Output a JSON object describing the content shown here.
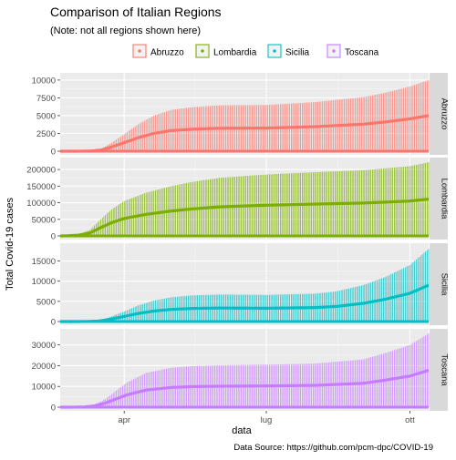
{
  "chart_data": {
    "type": "bar",
    "title": "Comparison of Italian Regions",
    "subtitle": "(Note: not all regions shown here)",
    "xlabel": "data",
    "ylabel": "Total Covid-19 cases",
    "caption": "Data Source: https://github.com/pcm-dpc/COVID-19",
    "legend": {
      "position": "top",
      "entries": [
        "Abruzzo",
        "Lombardia",
        "Sicilia",
        "Toscana"
      ]
    },
    "x_ticks": [
      {
        "label": "apr",
        "date": "2020-04-01"
      },
      {
        "label": "lug",
        "date": "2020-07-01"
      },
      {
        "label": "ott",
        "date": "2020-10-01"
      }
    ],
    "x_range": [
      "2020-02-20",
      "2020-10-13"
    ],
    "series": [
      {
        "name": "Abruzzo",
        "color": "#F8766D",
        "ylim": [
          0,
          10500
        ],
        "y_ticks": [
          {
            "value": 0,
            "label": "0"
          },
          {
            "value": 2500,
            "label": "2500"
          },
          {
            "value": 5000,
            "label": "5000"
          },
          {
            "value": 7500,
            "label": "7500"
          },
          {
            "value": 10000,
            "label": "10000"
          }
        ],
        "profile": [
          {
            "date": "2020-02-20",
            "value": 0
          },
          {
            "date": "2020-02-29",
            "value": 0
          },
          {
            "date": "2020-03-10",
            "value": 40
          },
          {
            "date": "2020-03-17",
            "value": 300
          },
          {
            "date": "2020-03-24",
            "value": 1200
          },
          {
            "date": "2020-04-01",
            "value": 2400
          },
          {
            "date": "2020-04-10",
            "value": 3800
          },
          {
            "date": "2020-04-20",
            "value": 5000
          },
          {
            "date": "2020-05-01",
            "value": 5800
          },
          {
            "date": "2020-05-15",
            "value": 6200
          },
          {
            "date": "2020-06-01",
            "value": 6450
          },
          {
            "date": "2020-07-01",
            "value": 6500
          },
          {
            "date": "2020-08-01",
            "value": 6900
          },
          {
            "date": "2020-09-01",
            "value": 7600
          },
          {
            "date": "2020-09-15",
            "value": 8200
          },
          {
            "date": "2020-10-01",
            "value": 9100
          },
          {
            "date": "2020-10-13",
            "value": 10000
          }
        ]
      },
      {
        "name": "Lombardia",
        "color": "#7CAE00",
        "ylim": [
          0,
          225000
        ],
        "y_ticks": [
          {
            "value": 0,
            "label": "0"
          },
          {
            "value": 50000,
            "label": "50000"
          },
          {
            "value": 100000,
            "label": "100000"
          },
          {
            "value": 150000,
            "label": "150000"
          },
          {
            "value": 200000,
            "label": "200000"
          }
        ],
        "profile": [
          {
            "date": "2020-02-20",
            "value": 0
          },
          {
            "date": "2020-02-24",
            "value": 500
          },
          {
            "date": "2020-03-03",
            "value": 5000
          },
          {
            "date": "2020-03-10",
            "value": 18000
          },
          {
            "date": "2020-03-17",
            "value": 50000
          },
          {
            "date": "2020-03-24",
            "value": 80000
          },
          {
            "date": "2020-04-01",
            "value": 105000
          },
          {
            "date": "2020-04-15",
            "value": 130000
          },
          {
            "date": "2020-05-01",
            "value": 150000
          },
          {
            "date": "2020-05-15",
            "value": 163000
          },
          {
            "date": "2020-06-01",
            "value": 175000
          },
          {
            "date": "2020-07-01",
            "value": 185000
          },
          {
            "date": "2020-08-01",
            "value": 192000
          },
          {
            "date": "2020-09-01",
            "value": 198000
          },
          {
            "date": "2020-10-01",
            "value": 210000
          },
          {
            "date": "2020-10-13",
            "value": 222000
          }
        ]
      },
      {
        "name": "Sicilia",
        "color": "#00BFC4",
        "ylim": [
          0,
          18500
        ],
        "y_ticks": [
          {
            "value": 0,
            "label": "0"
          },
          {
            "value": 5000,
            "label": "5000"
          },
          {
            "value": 10000,
            "label": "10000"
          },
          {
            "value": 15000,
            "label": "15000"
          }
        ],
        "profile": [
          {
            "date": "2020-02-20",
            "value": 0
          },
          {
            "date": "2020-02-28",
            "value": 0
          },
          {
            "date": "2020-03-08",
            "value": 30
          },
          {
            "date": "2020-03-15",
            "value": 200
          },
          {
            "date": "2020-03-22",
            "value": 1000
          },
          {
            "date": "2020-04-01",
            "value": 2500
          },
          {
            "date": "2020-04-10",
            "value": 4000
          },
          {
            "date": "2020-04-20",
            "value": 5200
          },
          {
            "date": "2020-05-01",
            "value": 6000
          },
          {
            "date": "2020-05-15",
            "value": 6500
          },
          {
            "date": "2020-06-01",
            "value": 6700
          },
          {
            "date": "2020-07-01",
            "value": 6600
          },
          {
            "date": "2020-08-01",
            "value": 6900
          },
          {
            "date": "2020-08-15",
            "value": 7500
          },
          {
            "date": "2020-09-01",
            "value": 9000
          },
          {
            "date": "2020-09-15",
            "value": 11000
          },
          {
            "date": "2020-10-01",
            "value": 14000
          },
          {
            "date": "2020-10-13",
            "value": 18000
          }
        ]
      },
      {
        "name": "Toscana",
        "color": "#C77CFF",
        "ylim": [
          0,
          36000
        ],
        "y_ticks": [
          {
            "value": 0,
            "label": "0"
          },
          {
            "value": 10000,
            "label": "10000"
          },
          {
            "value": 20000,
            "label": "20000"
          },
          {
            "value": 30000,
            "label": "30000"
          }
        ],
        "profile": [
          {
            "date": "2020-02-20",
            "value": 0
          },
          {
            "date": "2020-02-26",
            "value": 0
          },
          {
            "date": "2020-03-06",
            "value": 150
          },
          {
            "date": "2020-03-13",
            "value": 1200
          },
          {
            "date": "2020-03-20",
            "value": 4000
          },
          {
            "date": "2020-03-27",
            "value": 8000
          },
          {
            "date": "2020-04-03",
            "value": 12000
          },
          {
            "date": "2020-04-15",
            "value": 16500
          },
          {
            "date": "2020-05-01",
            "value": 19000
          },
          {
            "date": "2020-05-15",
            "value": 19800
          },
          {
            "date": "2020-06-01",
            "value": 20200
          },
          {
            "date": "2020-07-01",
            "value": 20500
          },
          {
            "date": "2020-08-01",
            "value": 21000
          },
          {
            "date": "2020-09-01",
            "value": 23000
          },
          {
            "date": "2020-09-15",
            "value": 26000
          },
          {
            "date": "2020-10-01",
            "value": 30000
          },
          {
            "date": "2020-10-13",
            "value": 35500
          }
        ]
      }
    ]
  }
}
